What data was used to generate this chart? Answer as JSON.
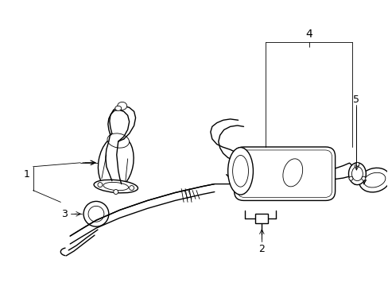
{
  "bg_color": "#ffffff",
  "line_color": "#000000",
  "lw": 1.0,
  "tlw": 0.6,
  "fig_width": 4.89,
  "fig_height": 3.6,
  "label_fontsize": 9
}
